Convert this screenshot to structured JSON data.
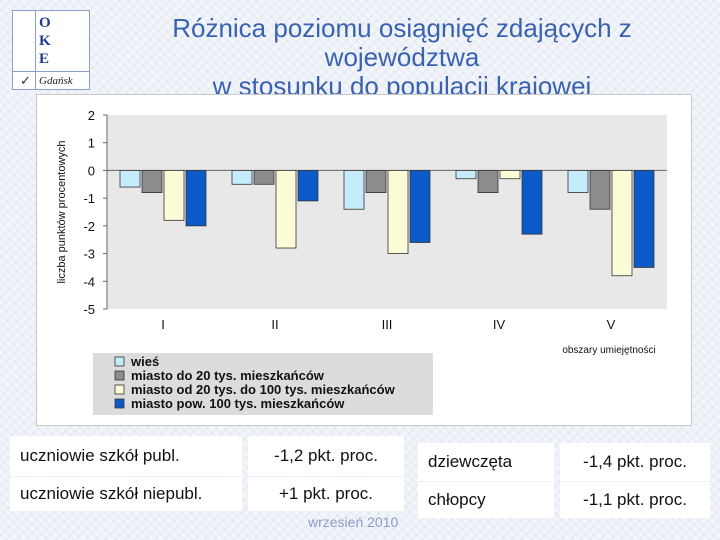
{
  "logo": {
    "letters": [
      "O",
      "K",
      "E"
    ],
    "check": "✓",
    "city": "Gdańsk"
  },
  "title_line1": "Różnica poziomu osiągnięć zdających z województwa",
  "title_line2": "w stosunku do populacji krajowej",
  "chart_data": {
    "type": "bar",
    "categories": [
      "I",
      "II",
      "III",
      "IV",
      "V"
    ],
    "xlabel": "obszary umiejętności",
    "ylabel": "liczba punktów procentowych",
    "ylim": [
      -5,
      2
    ],
    "yticks": [
      2,
      1,
      0,
      -1,
      -2,
      -3,
      -4,
      -5
    ],
    "grid": false,
    "legend_position": "bottom",
    "series": [
      {
        "name": "wieś",
        "color": "#c6ecfa",
        "values": [
          -0.6,
          -0.5,
          -1.4,
          -0.3,
          -0.8
        ]
      },
      {
        "name": "miasto do 20 tys. mieszkańców",
        "color": "#8c8c8c",
        "values": [
          -0.8,
          -0.5,
          -0.8,
          -0.8,
          -1.4
        ]
      },
      {
        "name": "miasto od 20 tys. do 100 tys. mieszkańców",
        "color": "#fdfad8",
        "values": [
          -1.8,
          -2.8,
          -3.0,
          -0.3,
          -3.8
        ]
      },
      {
        "name": "miasto pow. 100 tys. mieszkańców",
        "color": "#0a5ac8",
        "values": [
          -2.0,
          -1.1,
          -2.6,
          -2.3,
          -3.5
        ]
      }
    ]
  },
  "stats": {
    "publ_label": "uczniowie szkół publ.",
    "publ_value": "-1,2 pkt. proc.",
    "niepubl_label": "uczniowie szkół niepubl.",
    "niepubl_value": "+1 pkt. proc.",
    "girls_label": "dziewczęta",
    "girls_value": "-1,4 pkt. proc.",
    "boys_label": "chłopcy",
    "boys_value": "-1,1 pkt. proc."
  },
  "date": "wrzesień 2010"
}
